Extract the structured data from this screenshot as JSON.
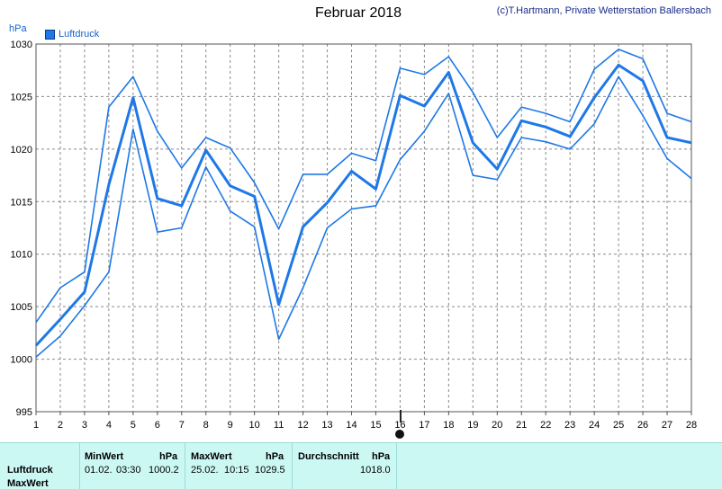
{
  "header": {
    "title": "Februar 2018",
    "copyright": "(c)T.Hartmann, Private Wetterstation Ballersbach",
    "unit": "hPa",
    "legend_label": "Luftdruck"
  },
  "colors": {
    "line": "#1e78e6",
    "grid": "#8a8a8a",
    "panel_bg": "#ccf8f4"
  },
  "chart_data": {
    "type": "line",
    "title": "Februar 2018",
    "ylabel": "hPa",
    "x": [
      1,
      2,
      3,
      4,
      5,
      6,
      7,
      8,
      9,
      10,
      11,
      12,
      13,
      14,
      15,
      16,
      17,
      18,
      19,
      20,
      21,
      22,
      23,
      24,
      25,
      26,
      27,
      28
    ],
    "xlim": [
      1,
      28
    ],
    "ylim": [
      995,
      1030
    ],
    "yticks": [
      995,
      1000,
      1005,
      1010,
      1015,
      1020,
      1025,
      1030
    ],
    "grid": true,
    "legend": "top-left",
    "series": [
      {
        "name": "Luftdruck",
        "role": "max",
        "values": [
          1003.5,
          1006.8,
          1008.3,
          1024.0,
          1026.9,
          1021.7,
          1018.2,
          1021.1,
          1020.1,
          1016.8,
          1012.4,
          1017.6,
          1017.6,
          1019.6,
          1018.9,
          1027.7,
          1027.1,
          1028.8,
          1025.4,
          1021.1,
          1024.0,
          1023.4,
          1022.6,
          1027.6,
          1029.5,
          1028.6,
          1023.4,
          1022.6
        ]
      },
      {
        "name": "Luftdruck",
        "role": "avg",
        "values": [
          1001.3,
          1003.8,
          1006.4,
          1016.6,
          1024.9,
          1015.3,
          1014.6,
          1019.9,
          1016.5,
          1015.5,
          1005.2,
          1012.6,
          1014.9,
          1017.9,
          1016.2,
          1025.1,
          1024.1,
          1027.3,
          1020.6,
          1018.1,
          1022.7,
          1022.1,
          1021.2,
          1024.9,
          1028.0,
          1026.5,
          1021.1,
          1020.6
        ]
      },
      {
        "name": "Luftdruck",
        "role": "min",
        "values": [
          1000.2,
          1002.2,
          1005.1,
          1008.3,
          1021.9,
          1012.1,
          1012.5,
          1018.3,
          1014.1,
          1012.6,
          1001.9,
          1006.8,
          1012.5,
          1014.3,
          1014.6,
          1019.0,
          1021.7,
          1025.3,
          1017.5,
          1017.1,
          1021.1,
          1020.7,
          1020.0,
          1022.4,
          1026.9,
          1023.2,
          1019.1,
          1017.2
        ]
      }
    ]
  },
  "stats": {
    "row_labels": [
      "Luftdruck",
      "MaxWert"
    ],
    "min": {
      "header": "MinWert",
      "unit": "hPa",
      "date": "01.02.",
      "time": "03:30",
      "value": "1000.2"
    },
    "max": {
      "header": "MaxWert",
      "unit": "hPa",
      "date": "25.02.",
      "time": "10:15",
      "value": "1029.5"
    },
    "avg": {
      "header": "Durchschnitt",
      "unit": "hPa",
      "value": "1018.0"
    }
  }
}
